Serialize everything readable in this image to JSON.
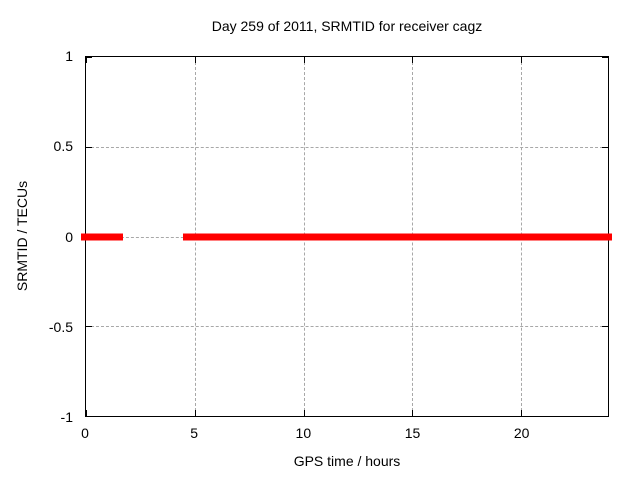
{
  "chart_data": {
    "type": "line",
    "title": "Day 259 of 2011, SRMTID for receiver cagz",
    "xlabel": "GPS time / hours",
    "ylabel": "SRMTID / TECUs",
    "xlim": [
      0,
      24
    ],
    "ylim": [
      -1,
      1
    ],
    "xticks": [
      0,
      5,
      10,
      15,
      20
    ],
    "yticks": [
      1,
      0.5,
      0,
      -0.5,
      -1
    ],
    "grid": true,
    "legend_position": "none",
    "background_color": "#ffffff",
    "axis_color": "#000000",
    "grid_color": "#a8a8a8",
    "series": [
      {
        "name": "SRMTID",
        "color": "#ff0000",
        "line_width": 7,
        "segments": [
          {
            "x_start": 0,
            "x_end": 1.5,
            "y": 0
          },
          {
            "x_start": 4.7,
            "x_end": 24,
            "y": 0
          }
        ]
      }
    ]
  }
}
